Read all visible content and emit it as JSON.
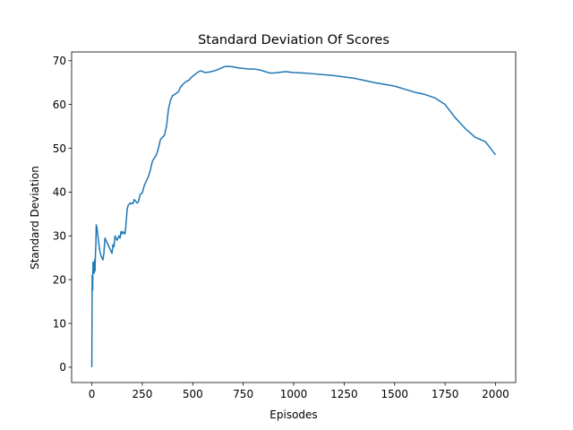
{
  "chart_data": {
    "type": "line",
    "title": "Standard Deviation Of Scores",
    "xlabel": "Episodes",
    "ylabel": "Standard Deviation",
    "xlim": [
      -100,
      2100
    ],
    "ylim": [
      -3.5,
      72
    ],
    "x_ticks": [
      0,
      250,
      500,
      750,
      1000,
      1250,
      1500,
      1750,
      2000
    ],
    "y_ticks": [
      0,
      10,
      20,
      30,
      40,
      50,
      60,
      70
    ],
    "grid": false,
    "legend": "none",
    "series": [
      {
        "color": "#1f77b4",
        "x": [
          0,
          2,
          4,
          6,
          8,
          10,
          12,
          14,
          16,
          18,
          20,
          22,
          25,
          30,
          35,
          40,
          45,
          50,
          55,
          60,
          65,
          70,
          75,
          80,
          85,
          90,
          95,
          100,
          105,
          110,
          115,
          120,
          125,
          130,
          135,
          140,
          145,
          150,
          155,
          160,
          165,
          170,
          175,
          180,
          185,
          190,
          195,
          200,
          205,
          210,
          215,
          220,
          225,
          230,
          240,
          250,
          260,
          270,
          280,
          290,
          300,
          310,
          320,
          330,
          340,
          350,
          360,
          370,
          380,
          390,
          400,
          410,
          420,
          430,
          440,
          450,
          460,
          470,
          480,
          490,
          500,
          510,
          520,
          530,
          540,
          550,
          560,
          580,
          600,
          620,
          640,
          660,
          680,
          700,
          720,
          740,
          760,
          780,
          800,
          820,
          840,
          860,
          880,
          900,
          920,
          940,
          960,
          980,
          1000,
          1050,
          1100,
          1150,
          1200,
          1250,
          1300,
          1350,
          1400,
          1450,
          1500,
          1550,
          1600,
          1650,
          1700,
          1750,
          1800,
          1850,
          1900,
          1950,
          2000
        ],
        "y": [
          0,
          21,
          17.5,
          24,
          21.5,
          24,
          21.5,
          24.5,
          22,
          26,
          28,
          32.5,
          32,
          30,
          28,
          26.5,
          25.5,
          25,
          24.5,
          26,
          29.5,
          29,
          28.5,
          28,
          27.5,
          27,
          26.5,
          26,
          28,
          27.5,
          30,
          29.5,
          29,
          29.5,
          30,
          29.5,
          31,
          30.5,
          31,
          30.5,
          30.5,
          33,
          36,
          37,
          37.2,
          37.5,
          37.3,
          37.5,
          37.4,
          38.3,
          38,
          37.8,
          37.5,
          37.7,
          39.5,
          39.8,
          41.5,
          42.5,
          43.5,
          45,
          47,
          47.8,
          48.5,
          50,
          52,
          52.5,
          53,
          55,
          59,
          61,
          62,
          62.3,
          62.6,
          63,
          64,
          64.5,
          65,
          65.3,
          65.5,
          66,
          66.5,
          66.8,
          67.2,
          67.5,
          67.7,
          67.5,
          67.3,
          67.4,
          67.6,
          67.9,
          68.3,
          68.7,
          68.7,
          68.6,
          68.4,
          68.3,
          68.2,
          68.1,
          68.1,
          68.0,
          67.8,
          67.5,
          67.2,
          67.2,
          67.3,
          67.4,
          67.5,
          67.4,
          67.3,
          67.2,
          67.0,
          66.8,
          66.6,
          66.3,
          66.0,
          65.5,
          65.0,
          64.6,
          64.2,
          63.5,
          62.8,
          62.3,
          61.5,
          60.0,
          57.0,
          54.5,
          52.5,
          51.5,
          48.5
        ]
      }
    ]
  }
}
